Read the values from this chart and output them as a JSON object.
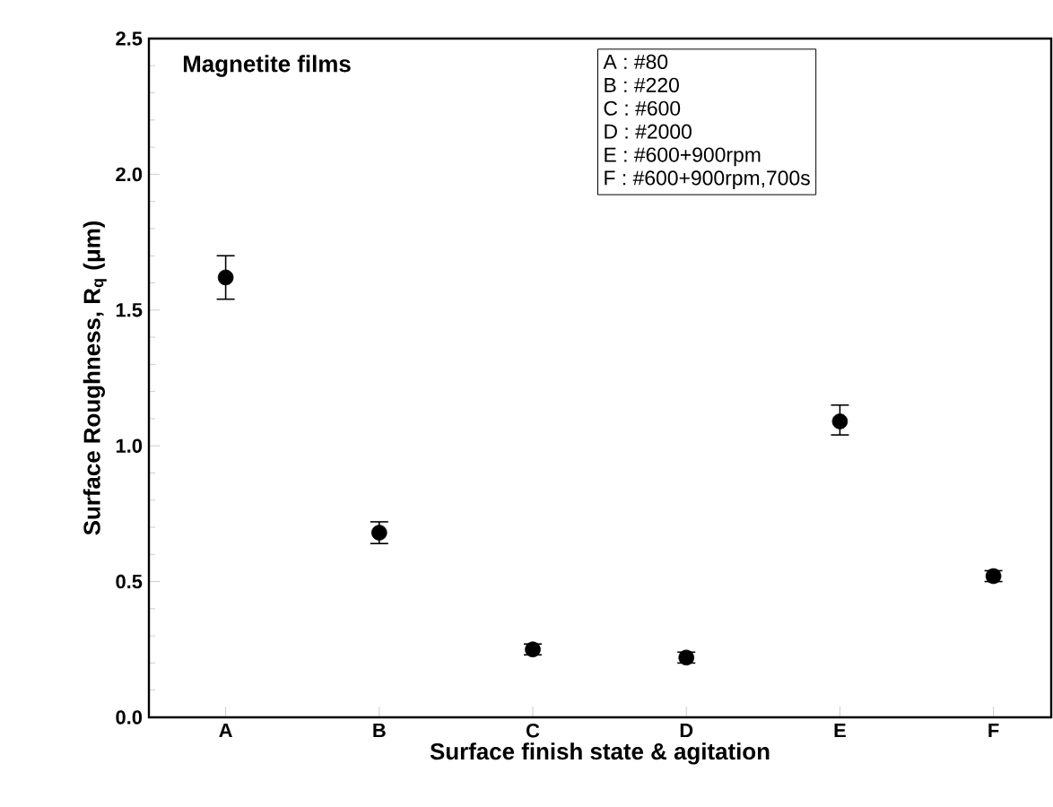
{
  "chart_data": {
    "type": "scatter",
    "title": "Magnetite films",
    "xlabel": "Surface finish state & agitation",
    "ylabel": "Surface Roughness, R$_{q}$ (μm)",
    "categories": [
      "A",
      "B",
      "C",
      "D",
      "E",
      "F"
    ],
    "values": [
      1.62,
      0.68,
      0.25,
      0.22,
      1.09,
      0.52
    ],
    "errors": [
      [
        1.54,
        1.7
      ],
      [
        0.64,
        0.72
      ],
      [
        0.23,
        0.27
      ],
      [
        0.2,
        0.24
      ],
      [
        1.04,
        1.15
      ],
      [
        0.5,
        0.54
      ]
    ],
    "color": "#000000",
    "marker": "circle",
    "ylim": [
      0,
      2.5
    ],
    "yticks": [
      {
        "value": 0,
        "label": "0.0"
      },
      0.5,
      {
        "value": 1,
        "label": "1.0"
      },
      1.5,
      {
        "value": 2,
        "label": "2.0"
      },
      2.5
    ],
    "annotations": [
      "A : #80",
      "B : #220",
      "C : #600",
      "D : #2000",
      "E : #600+900rpm",
      "F : #600+900rpm,700s"
    ]
  }
}
